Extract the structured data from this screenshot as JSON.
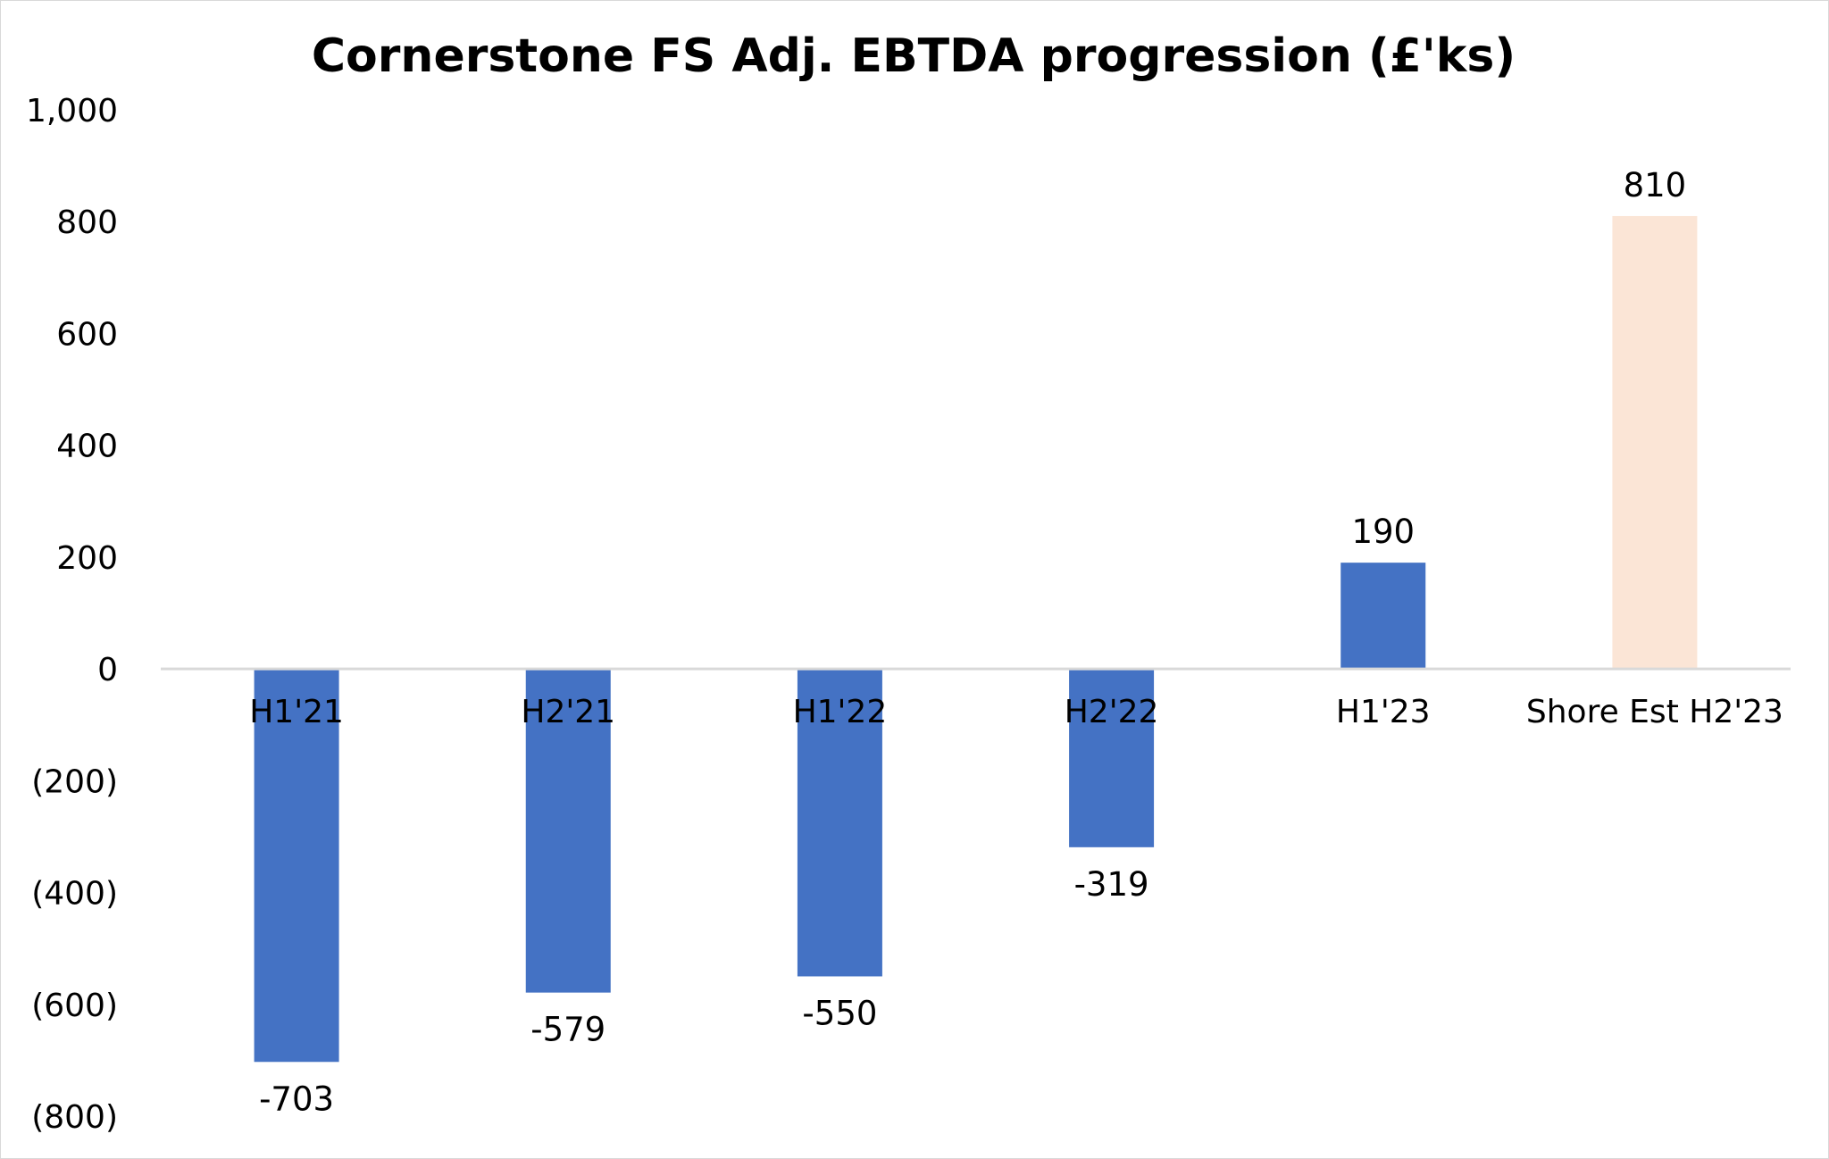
{
  "chart_data": {
    "type": "bar",
    "title": "Cornerstone FS Adj. EBTDA progression (£'ks)",
    "xlabel": "",
    "ylabel": "",
    "categories": [
      "H1'21",
      "H2'21",
      "H1'22",
      "H2'22",
      "H1'23",
      "Shore Est H2'23"
    ],
    "values": [
      -703,
      -579,
      -550,
      -319,
      190,
      810
    ],
    "data_labels": [
      "-703",
      "-579",
      "-550",
      "-319",
      "190",
      "810"
    ],
    "bar_colors": [
      "#4472c4",
      "#4472c4",
      "#4472c4",
      "#4472c4",
      "#4472c4",
      "#fbe5d6"
    ],
    "ylim": [
      -800,
      1000
    ],
    "yticks": [
      1000,
      800,
      600,
      400,
      200,
      0,
      -200,
      -400,
      -600,
      -800
    ],
    "ytick_labels": [
      "1,000",
      "800",
      "600",
      "400",
      "200",
      "0",
      "(200)",
      "(400)",
      "(600)",
      "(800)"
    ],
    "grid": false,
    "legend": "none"
  }
}
